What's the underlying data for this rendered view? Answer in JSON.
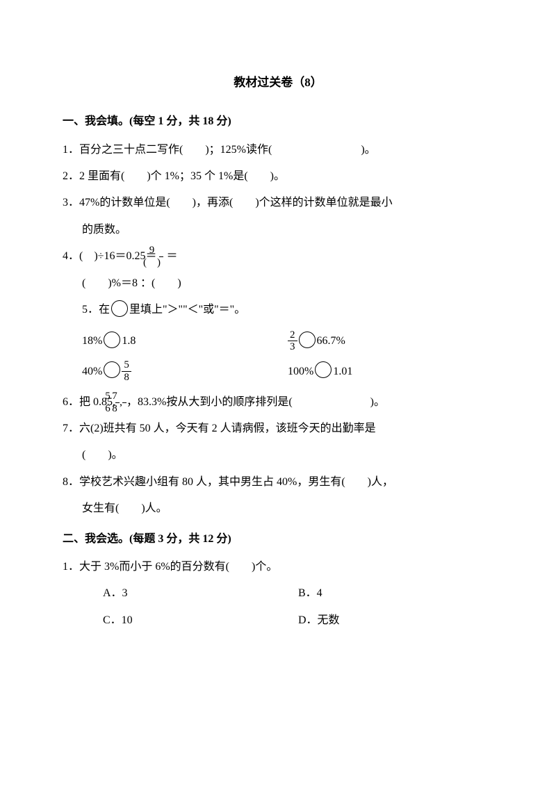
{
  "title": "教材过关卷（8）",
  "section1": {
    "heading": "一、我会填。(每空 1 分，共 18 分)",
    "q1": "1．百分之三十点二写作(　　)；125%读作(　　　　　　　　)。",
    "q2": "2．2 里面有(　　)个 1%；35 个 1%是(　　)。",
    "q3": "3．47%的计数单位是(　　)，再添(　　)个这样的计数单位就是最小",
    "q3b": "的质数。",
    "q4a": "4．(　)÷16＝0.25＝",
    "q4frac": {
      "num": "9",
      "den": "(　)"
    },
    "q4eq": "＝",
    "q4b": "(　　)%＝8 ：(　　)",
    "q5": "5．在",
    "q5b": "里填上\"＞\"\"＜\"或\"＝\"。",
    "comp": {
      "c1a": "18%",
      "c1b": "1.8",
      "c2a": {
        "num": "2",
        "den": "3"
      },
      "c2b": "66.7%",
      "c3a": "40%",
      "c3b": {
        "num": "5",
        "den": "8"
      },
      "c4a": "100%",
      "c4b": "1.01"
    },
    "q6a": "6．把 0.85,",
    "q6f1": {
      "num": "5",
      "den": "6"
    },
    "q6c": ",",
    "q6f2": {
      "num": "7",
      "den": "8"
    },
    "q6b": "，83.3%按从大到小的顺序排列是(　　　　　　　)。",
    "q7": "7．六(2)班共有 50 人，今天有 2 人请病假，该班今天的出勤率是",
    "q7b": "(　　)。",
    "q8": "8．学校艺术兴趣小组有 80 人，其中男生占 40%，男生有(　　)人，",
    "q8b": "女生有(　　)人。"
  },
  "section2": {
    "heading": "二、我会选。(每题 3 分，共 12 分)",
    "q1": "1．大于 3%而小于 6%的百分数有(　　)个。",
    "opts": {
      "a": "A．3",
      "b": "B．4",
      "c": "C．10",
      "d": "D．无数"
    }
  }
}
